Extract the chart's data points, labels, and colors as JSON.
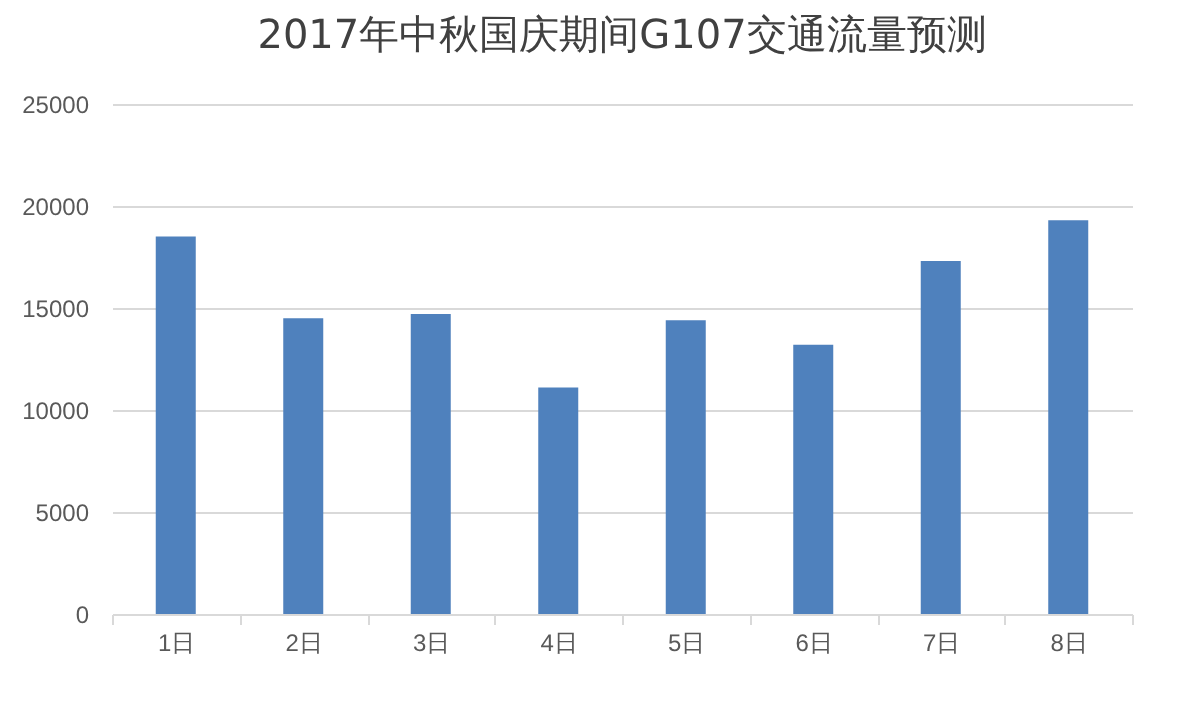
{
  "chart_data": {
    "type": "bar",
    "title": "2017年中秋国庆期间G107交通流量预测",
    "categories": [
      "1日",
      "2日",
      "3日",
      "4日",
      "5日",
      "6日",
      "7日",
      "8日"
    ],
    "values": [
      18500,
      14500,
      14700,
      11100,
      14400,
      13200,
      17300,
      19300
    ],
    "color": "#4f81bd",
    "ylim": [
      0,
      25000
    ],
    "yticks": [
      0,
      5000,
      10000,
      15000,
      20000,
      25000
    ],
    "grid": "y"
  }
}
